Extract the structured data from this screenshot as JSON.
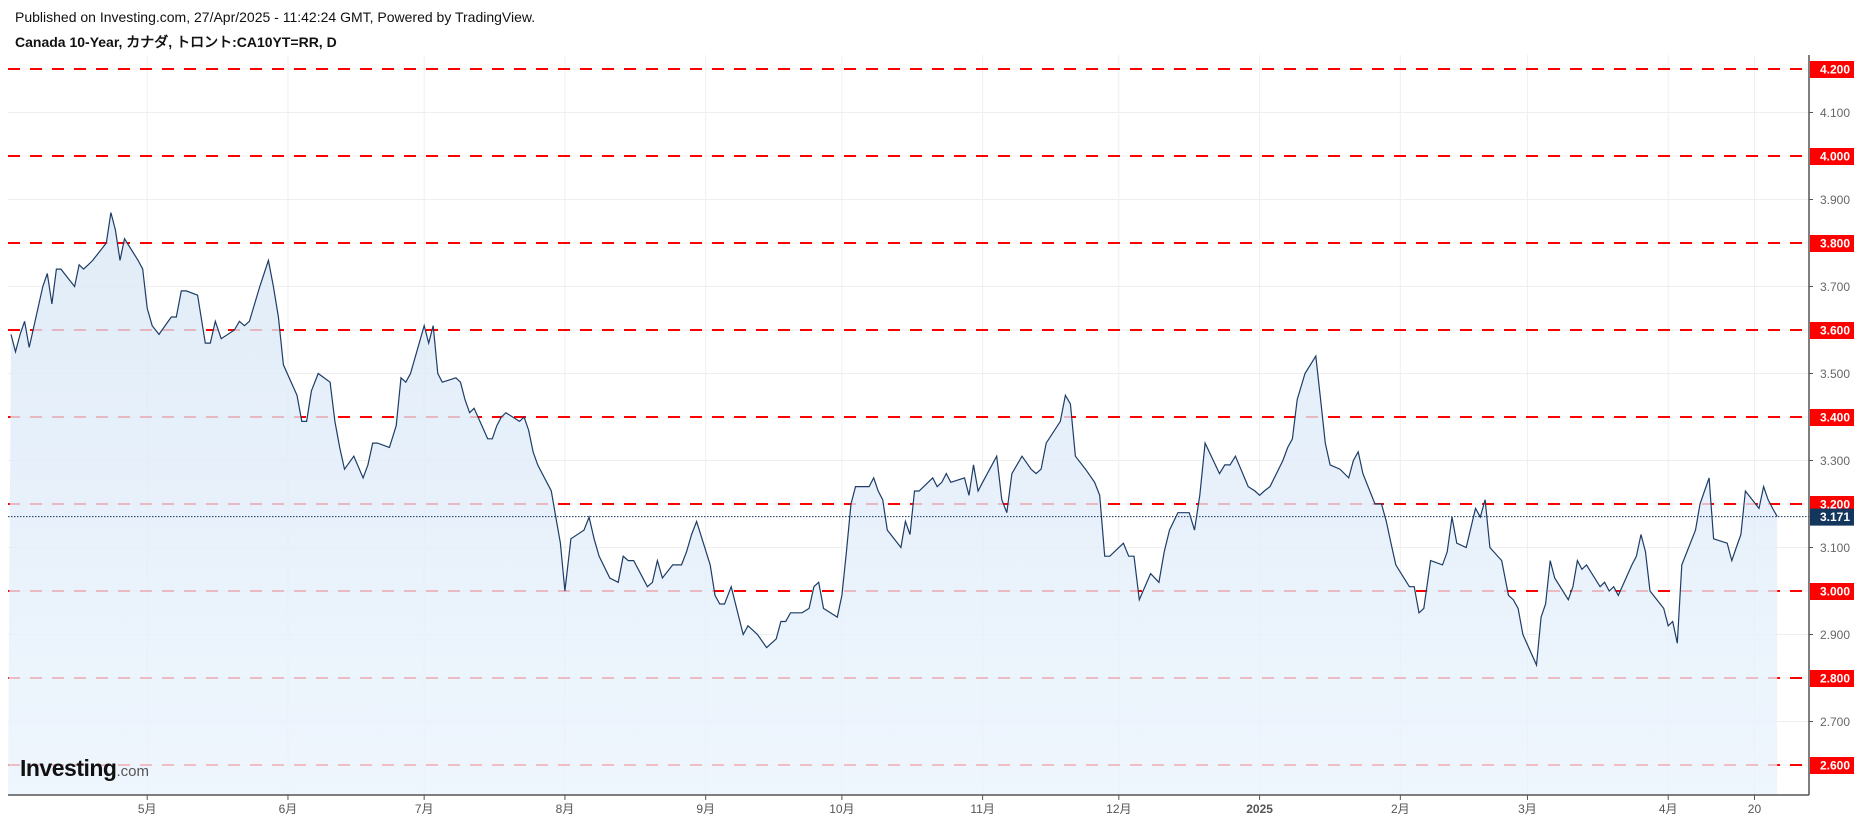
{
  "header": {
    "published": "Published on Investing.com, 27/Apr/2025 - 11:42:24 GMT, Powered by TradingView.",
    "title": "Canada 10-Year, カナダ, トロント:CA10YT=RR, D"
  },
  "logo": {
    "text": "Investing",
    "suffix": ".com"
  },
  "chart_data": {
    "type": "area",
    "title": "Canada 10-Year, カナダ, トロント:CA10YT=RR, D",
    "ylim": [
      2.53,
      4.23
    ],
    "y_ticks": [
      "4.100",
      "3.900",
      "3.700",
      "3.500",
      "3.300",
      "3.100",
      "2.900",
      "2.700"
    ],
    "y_tick_values": [
      4.1,
      3.9,
      3.7,
      3.5,
      3.3,
      3.1,
      2.9,
      2.7
    ],
    "x_ticks": [
      {
        "label": "5月",
        "date": "2024-05-01"
      },
      {
        "label": "6月",
        "date": "2024-06-01"
      },
      {
        "label": "7月",
        "date": "2024-07-01"
      },
      {
        "label": "8月",
        "date": "2024-08-01"
      },
      {
        "label": "9月",
        "date": "2024-09-01"
      },
      {
        "label": "10月",
        "date": "2024-10-01"
      },
      {
        "label": "11月",
        "date": "2024-11-01"
      },
      {
        "label": "12月",
        "date": "2024-12-01"
      },
      {
        "label": "2025",
        "date": "2025-01-01",
        "bold": true
      },
      {
        "label": "2月",
        "date": "2025-02-01"
      },
      {
        "label": "3月",
        "date": "2025-03-01"
      },
      {
        "label": "4月",
        "date": "2025-04-01"
      },
      {
        "label": "20",
        "date": "2025-04-20"
      }
    ],
    "grid": true,
    "horizontal_levels": [
      {
        "value": 4.2,
        "label": "4.200"
      },
      {
        "value": 4.0,
        "label": "4.000"
      },
      {
        "value": 3.8,
        "label": "3.800"
      },
      {
        "value": 3.6,
        "label": "3.600"
      },
      {
        "value": 3.4,
        "label": "3.400"
      },
      {
        "value": 3.2,
        "label": "3.200"
      },
      {
        "value": 3.0,
        "label": "3.000"
      },
      {
        "value": 2.8,
        "label": "2.800"
      },
      {
        "value": 2.6,
        "label": "2.600"
      }
    ],
    "last_value": {
      "value": 3.171,
      "label": "3.171"
    },
    "colors": {
      "line": "#1d3d66",
      "fill_top": "#d9e7f6",
      "fill_bottom": "#eaf3fd",
      "level": "#ff0000",
      "last": "#13365c",
      "grid": "#efefef",
      "axis": "#555555"
    },
    "daily_values_by_month": {
      "2024-04": [
        3.59,
        3.55,
        3.59,
        3.62,
        3.56,
        3.7,
        3.73,
        3.66,
        3.74,
        3.74,
        3.7,
        3.75,
        3.74,
        3.75,
        3.76,
        3.8,
        3.87,
        3.83,
        3.76,
        3.81,
        3.76,
        3.74
      ],
      "2024-05": [
        3.65,
        3.61,
        3.59,
        3.63,
        3.63,
        3.69,
        3.69,
        3.68,
        3.57,
        3.57,
        3.62,
        3.58,
        3.6,
        3.62,
        3.61,
        3.62,
        3.7,
        3.76,
        3.7,
        3.63,
        3.52
      ],
      "2024-06": [
        3.45,
        3.39,
        3.39,
        3.46,
        3.5,
        3.48,
        3.39,
        3.33,
        3.28,
        3.31,
        3.26,
        3.29,
        3.34,
        3.34,
        3.33,
        3.38,
        3.49,
        3.48,
        3.5
      ],
      "2024-07": [
        3.61,
        3.57,
        3.61,
        3.5,
        3.48,
        3.49,
        3.48,
        3.44,
        3.41,
        3.42,
        3.35,
        3.35,
        3.38,
        3.4,
        3.41,
        3.39,
        3.4,
        3.37,
        3.32,
        3.29,
        3.23,
        3.17,
        3.11
      ],
      "2024-08": [
        3.0,
        3.12,
        3.14,
        3.17,
        3.12,
        3.08,
        3.03,
        3.02,
        3.08,
        3.07,
        3.07,
        3.01,
        3.02,
        3.07,
        3.03,
        3.06,
        3.06,
        3.09,
        3.13,
        3.16
      ],
      "2024-09": [
        3.06,
        2.99,
        2.97,
        2.97,
        3.01,
        2.9,
        2.92,
        2.91,
        2.9,
        2.87,
        2.89,
        2.93,
        2.93,
        2.95,
        2.95,
        2.96,
        3.01,
        3.02,
        2.96,
        2.94
      ],
      "2024-10": [
        2.99,
        3.09,
        3.2,
        3.24,
        3.24,
        3.26,
        3.23,
        3.21,
        3.14,
        3.1,
        3.16,
        3.13,
        3.23,
        3.23,
        3.26,
        3.24,
        3.25,
        3.27,
        3.25,
        3.26,
        3.22,
        3.29,
        3.23
      ],
      "2024-11": [
        3.25,
        3.31,
        3.21,
        3.18,
        3.27,
        3.31,
        3.28,
        3.27,
        3.28,
        3.34,
        3.39,
        3.45,
        3.43,
        3.31,
        3.28,
        3.25,
        3.22,
        3.08,
        3.08
      ],
      "2024-12": [
        3.11,
        3.08,
        3.08,
        2.98,
        3.04,
        3.02,
        3.09,
        3.14,
        3.18,
        3.18,
        3.14,
        3.22,
        3.34,
        3.27,
        3.29,
        3.29,
        3.31,
        3.24,
        3.23
      ],
      "2025-01": [
        3.22,
        3.23,
        3.24,
        3.3,
        3.33,
        3.35,
        3.44,
        3.5,
        3.54,
        3.44,
        3.34,
        3.29,
        3.28,
        3.26,
        3.3,
        3.32,
        3.27,
        3.2,
        3.2,
        3.16,
        3.11,
        3.06
      ],
      "2025-02": [
        3.01,
        3.01,
        2.95,
        2.96,
        3.07,
        3.06,
        3.09,
        3.17,
        3.11,
        3.1,
        3.19,
        3.17,
        3.21,
        3.1,
        3.07,
        2.99,
        2.98,
        2.96,
        2.9
      ],
      "2025-03": [
        2.83,
        2.94,
        2.97,
        3.07,
        3.03,
        2.98,
        3.01,
        3.07,
        3.05,
        3.06,
        3.01,
        3.02,
        3.0,
        3.01,
        2.99,
        3.06,
        3.08,
        3.13,
        3.09,
        3.0,
        2.96
      ],
      "2025-04": [
        2.92,
        2.93,
        2.88,
        3.06,
        3.14,
        3.2,
        3.23,
        3.26,
        3.12,
        3.11,
        3.07,
        3.1,
        3.13,
        3.23,
        3.19,
        3.24,
        3.21,
        3.19,
        3.171
      ]
    }
  }
}
